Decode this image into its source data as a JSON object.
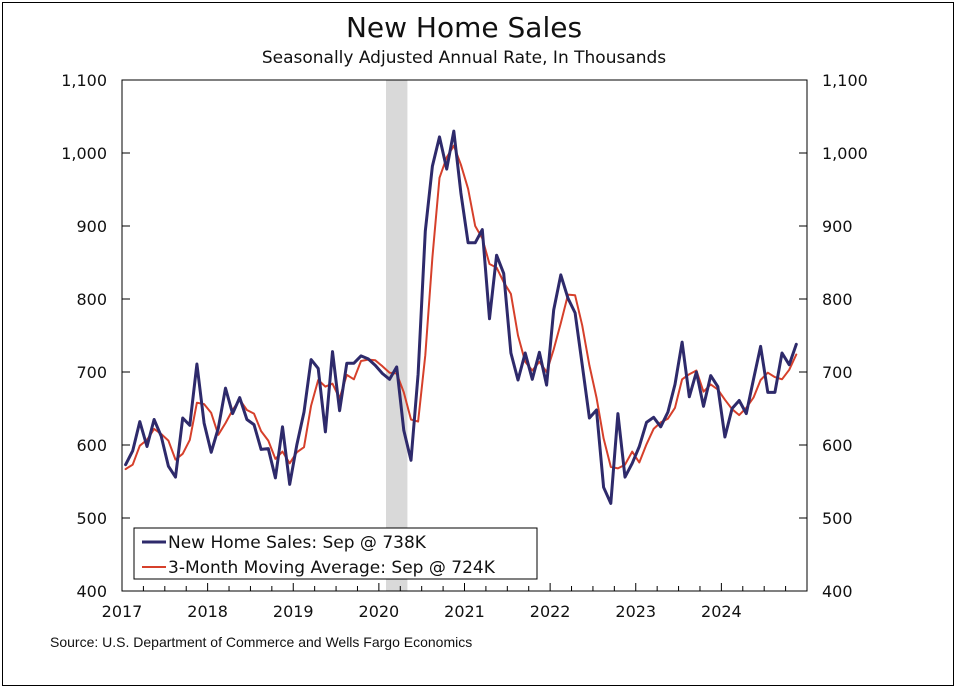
{
  "chart_data": {
    "type": "line",
    "title": "New Home Sales",
    "subtitle": "Seasonally Adjusted Annual Rate, In Thousands",
    "ylim": [
      400,
      1100
    ],
    "xlim": [
      "2017-01",
      "2024-12"
    ],
    "y_ticks": [
      "400",
      "500",
      "600",
      "700",
      "800",
      "900",
      "1,000",
      "1,100"
    ],
    "x_ticks": [
      "2017",
      "2018",
      "2019",
      "2020",
      "2021",
      "2022",
      "2023",
      "2024"
    ],
    "grid": false,
    "legend_position": "bottom-left",
    "recession_shading": {
      "start": "2020-02",
      "end": "2020-04",
      "color": "#d9d9d9"
    },
    "series": [
      {
        "name": "New Home Sales: Sep @ 738K",
        "color": "#2e2a6b",
        "start": "2017-01",
        "values": [
          573,
          592,
          632,
          598,
          635,
          612,
          571,
          556,
          637,
          627,
          711,
          630,
          590,
          623,
          678,
          643,
          665,
          635,
          628,
          594,
          595,
          555,
          625,
          546,
          600,
          645,
          717,
          705,
          618,
          728,
          647,
          712,
          712,
          722,
          718,
          709,
          698,
          690,
          707,
          620,
          579,
          697,
          893,
          982,
          1022,
          978,
          1030,
          945,
          877,
          877,
          895,
          773,
          860,
          835,
          726,
          689,
          726,
          690,
          727,
          682,
          785,
          833,
          801,
          781,
          710,
          637,
          648,
          542,
          520,
          643,
          556,
          575,
          598,
          631,
          638,
          625,
          645,
          683,
          741,
          666,
          700,
          653,
          695,
          680,
          611,
          650,
          661,
          643,
          690,
          735,
          672,
          672,
          726,
          710,
          738
        ]
      },
      {
        "name": "3-Month Moving Average: Sep @ 724K",
        "color": "#d6402b",
        "start": "2017-01",
        "values": [
          567,
          573,
          599,
          607,
          622,
          615,
          606,
          580,
          588,
          607,
          658,
          656,
          644,
          614,
          630,
          648,
          662,
          648,
          643,
          619,
          606,
          581,
          591,
          575,
          590,
          597,
          654,
          689,
          680,
          684,
          664,
          696,
          690,
          715,
          717,
          716,
          708,
          699,
          698,
          672,
          635,
          632,
          723,
          857,
          966,
          994,
          1010,
          984,
          951,
          900,
          883,
          848,
          843,
          823,
          807,
          750,
          714,
          702,
          714,
          700,
          731,
          767,
          806,
          805,
          764,
          709,
          665,
          609,
          570,
          568,
          573,
          591,
          576,
          601,
          622,
          631,
          636,
          651,
          690,
          697,
          702,
          673,
          683,
          676,
          662,
          649,
          641,
          651,
          665,
          689,
          699,
          693,
          690,
          703,
          724
        ]
      }
    ]
  },
  "source_note": "Source: U.S. Department of Commerce and Wells Fargo Economics"
}
